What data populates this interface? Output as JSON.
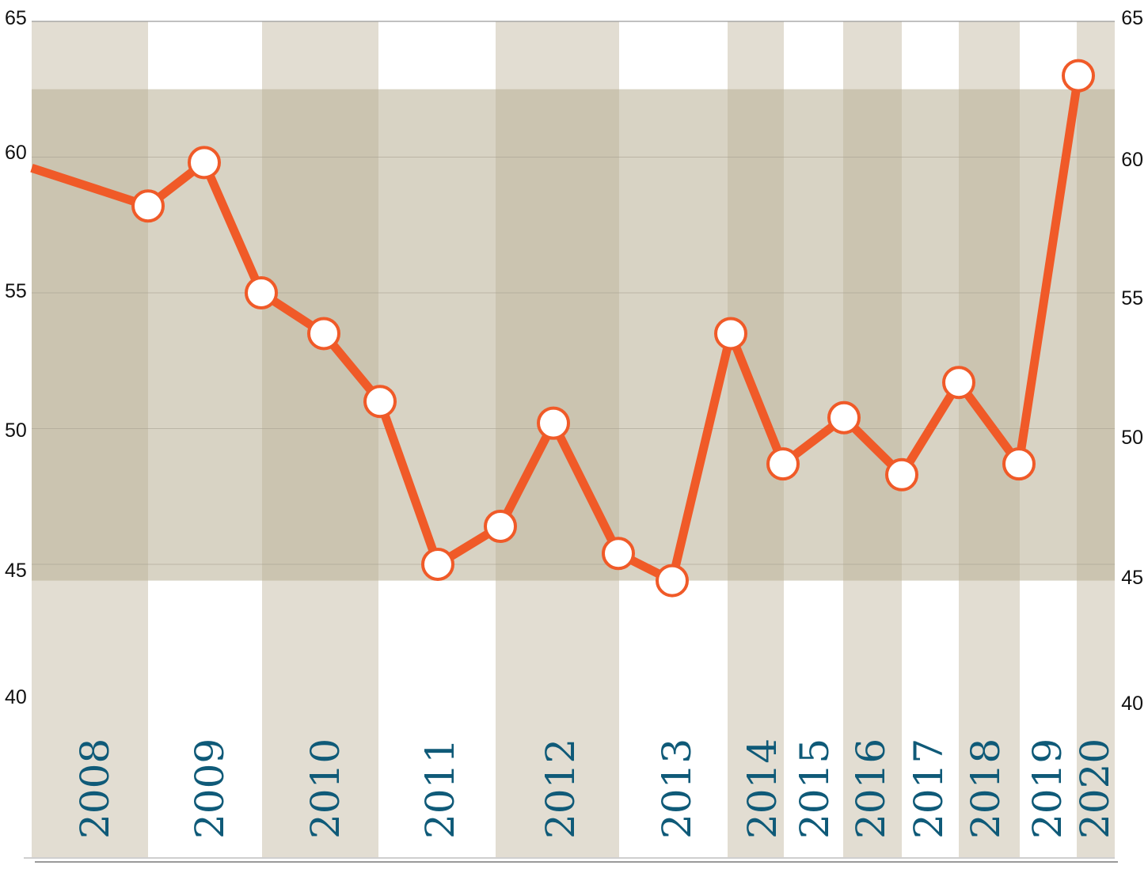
{
  "chart_data": {
    "type": "line",
    "title": "",
    "xlabel": "",
    "ylabel": "",
    "ylim": [
      40,
      65
    ],
    "y_ticks_left": [
      "65",
      "60",
      "55",
      "50",
      "45",
      "40"
    ],
    "y_ticks_right": [
      "65",
      "60",
      "55",
      "50",
      "45",
      "40"
    ],
    "x_ticks": [
      "2008",
      "2009",
      "2010",
      "2011",
      "2012",
      "2013",
      "2014",
      "2015",
      "2016",
      "2017",
      "2018",
      "2019",
      "2020"
    ],
    "band_range": [
      44.4,
      62.5
    ],
    "grid": true,
    "legend": "none",
    "series": [
      {
        "values": [
          59.6,
          58.2,
          59.8,
          55.0,
          53.5,
          51.0,
          45.0,
          46.4,
          50.2,
          45.4,
          44.4,
          53.5,
          48.7,
          50.4,
          48.3,
          51.7,
          48.7,
          63.0
        ]
      }
    ],
    "line_color": "#f05a28",
    "marker_fill": "#ffffff",
    "year_band_color": "#e2ddd2",
    "range_band_color": "#b8ae94",
    "label_color": "#0f5a78"
  }
}
